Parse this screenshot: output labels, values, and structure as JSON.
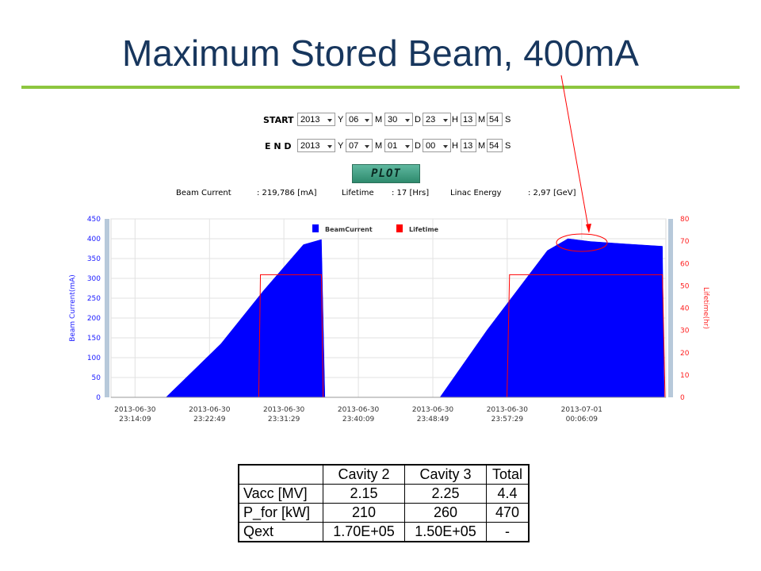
{
  "page": {
    "title": "Maximum Stored Beam, 400mA"
  },
  "controls": {
    "start": {
      "label": "START",
      "year": "2013",
      "y": "Y",
      "month": "06",
      "m": "M",
      "day": "30",
      "d": "D",
      "hour": "23",
      "h": "H",
      "minute": "13",
      "mm": "M",
      "second": "54",
      "s": "S"
    },
    "end": {
      "label": "E N D",
      "year": "2013",
      "y": "Y",
      "month": "07",
      "m": "M",
      "day": "01",
      "d": "D",
      "hour": "00",
      "h": "H",
      "minute": "13",
      "mm": "M",
      "second": "54",
      "s": "S"
    },
    "plot_label": "PLOT"
  },
  "info": {
    "beam_label": "Beam Current",
    "beam_value": ": 219,786 [mA]",
    "life_label": "Lifetime",
    "life_value": ": 17 [Hrs]",
    "linac_label": "Linac Energy",
    "linac_value": ": 2,97 [GeV]"
  },
  "colors": {
    "beam": "#0000ff",
    "lifetime": "#ff0000",
    "title": "#17365d",
    "rule": "#8dc63f"
  },
  "chart_data": {
    "type": "area",
    "ylabel": "Beam Current(mA)",
    "y2label": "Lifetime(hr)",
    "ylim": [
      0,
      450
    ],
    "y2lim": [
      0,
      80
    ],
    "yticks": [
      "0",
      "50",
      "100",
      "150",
      "200",
      "250",
      "300",
      "350",
      "400",
      "450"
    ],
    "y2ticks": [
      "0",
      "10",
      "20",
      "30",
      "40",
      "50",
      "60",
      "70",
      "80"
    ],
    "xticks": [
      {
        "t": 0.0,
        "l1": "2013-06-30",
        "l2": "23:14:09"
      },
      {
        "t": 8.67,
        "l1": "2013-06-30",
        "l2": "23:22:49"
      },
      {
        "t": 17.33,
        "l1": "2013-06-30",
        "l2": "23:31:29"
      },
      {
        "t": 26.0,
        "l1": "2013-06-30",
        "l2": "23:40:09"
      },
      {
        "t": 34.67,
        "l1": "2013-06-30",
        "l2": "23:48:49"
      },
      {
        "t": 43.33,
        "l1": "2013-06-30",
        "l2": "23:57:29"
      },
      {
        "t": 52.0,
        "l1": "2013-07-01",
        "l2": "00:06:09"
      }
    ],
    "xlim": [
      -2.8,
      61.8
    ],
    "legend": [
      {
        "name": "BeamCurrent",
        "color": "#0000ff"
      },
      {
        "name": "Lifetime",
        "color": "#ff0000"
      }
    ],
    "legend_position": "top-center",
    "series": [
      {
        "name": "BeamCurrent",
        "points": [
          [
            3.6,
            0
          ],
          [
            10.0,
            135
          ],
          [
            15.0,
            270
          ],
          [
            19.6,
            385
          ],
          [
            21.7,
            398
          ],
          [
            22.1,
            0
          ]
        ]
      },
      {
        "name": "BeamCurrent",
        "points": [
          [
            35.5,
            0
          ],
          [
            41.0,
            170
          ],
          [
            48.0,
            370
          ],
          [
            50.4,
            400
          ],
          [
            53.0,
            393
          ],
          [
            57.0,
            387
          ],
          [
            61.4,
            381
          ],
          [
            61.6,
            0
          ]
        ]
      },
      {
        "name": "Lifetime",
        "points": [
          [
            14.4,
            0
          ],
          [
            14.6,
            55
          ],
          [
            21.7,
            55
          ],
          [
            21.9,
            0
          ]
        ]
      },
      {
        "name": "Lifetime",
        "points": [
          [
            43.3,
            0
          ],
          [
            43.6,
            55
          ],
          [
            61.4,
            55
          ],
          [
            61.7,
            0
          ]
        ]
      }
    ]
  },
  "table": {
    "headers": [
      "",
      "Cavity 2",
      "Cavity 3",
      "Total"
    ],
    "rows": [
      [
        "Vacc [MV]",
        "2.15",
        "2.25",
        "4.4"
      ],
      [
        "P_for [kW]",
        "210",
        "260",
        "470"
      ],
      [
        "Qext",
        "1.70E+05",
        "1.50E+05",
        "-"
      ]
    ]
  }
}
